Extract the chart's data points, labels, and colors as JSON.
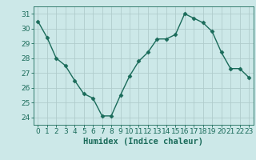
{
  "x": [
    0,
    1,
    2,
    3,
    4,
    5,
    6,
    7,
    8,
    9,
    10,
    11,
    12,
    13,
    14,
    15,
    16,
    17,
    18,
    19,
    20,
    21,
    22,
    23
  ],
  "y": [
    30.5,
    29.4,
    28.0,
    27.5,
    26.5,
    25.6,
    25.3,
    24.1,
    24.1,
    25.5,
    26.8,
    27.8,
    28.4,
    29.3,
    29.3,
    29.6,
    31.0,
    30.7,
    30.4,
    29.8,
    28.4,
    27.3,
    27.3,
    26.7
  ],
  "xlabel": "Humidex (Indice chaleur)",
  "ylim": [
    23.5,
    31.5
  ],
  "xlim": [
    -0.5,
    23.5
  ],
  "yticks": [
    24,
    25,
    26,
    27,
    28,
    29,
    30,
    31
  ],
  "xticks": [
    0,
    1,
    2,
    3,
    4,
    5,
    6,
    7,
    8,
    9,
    10,
    11,
    12,
    13,
    14,
    15,
    16,
    17,
    18,
    19,
    20,
    21,
    22,
    23
  ],
  "line_color": "#1a6b5a",
  "marker": "D",
  "marker_size": 2.5,
  "bg_color": "#cce8e8",
  "grid_color": "#b0cccc",
  "axis_color": "#1a6b5a",
  "tick_color": "#1a6b5a",
  "label_color": "#1a6b5a",
  "font_size": 6.5,
  "xlabel_fontsize": 7.5
}
